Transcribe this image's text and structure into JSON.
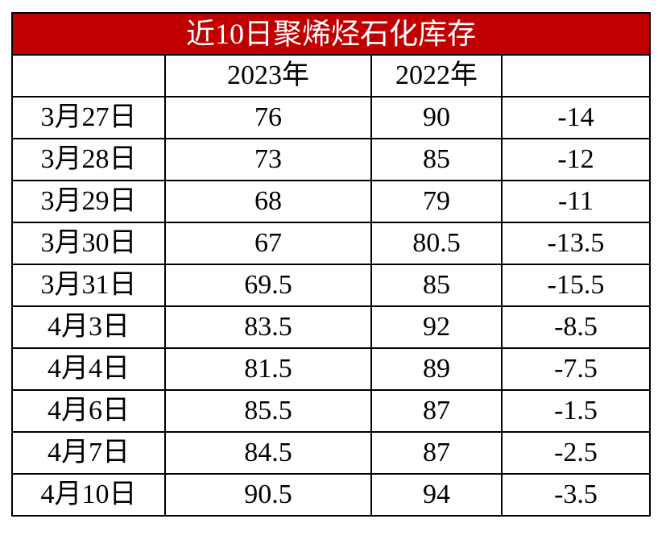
{
  "table": {
    "title": "近10日聚烯烃石化库存",
    "header": [
      "2023年",
      "2022年"
    ],
    "rows": [
      [
        "3月27日",
        76,
        90,
        -14
      ],
      [
        "3月28日",
        73,
        85,
        -12
      ],
      [
        "3月29日",
        68,
        79,
        -11
      ],
      [
        "3月30日",
        67,
        80.5,
        -13.5
      ],
      [
        "3月31日",
        69.5,
        85,
        -15.5
      ],
      [
        "4月3日",
        83.5,
        92,
        -8.5
      ],
      [
        "4月4日",
        81.5,
        89,
        -7.5
      ],
      [
        "4月6日",
        85.5,
        87,
        -1.5
      ],
      [
        "4月7日",
        84.5,
        87,
        -2.5
      ],
      [
        "4月10日",
        90.5,
        94,
        -3.5
      ]
    ]
  }
}
